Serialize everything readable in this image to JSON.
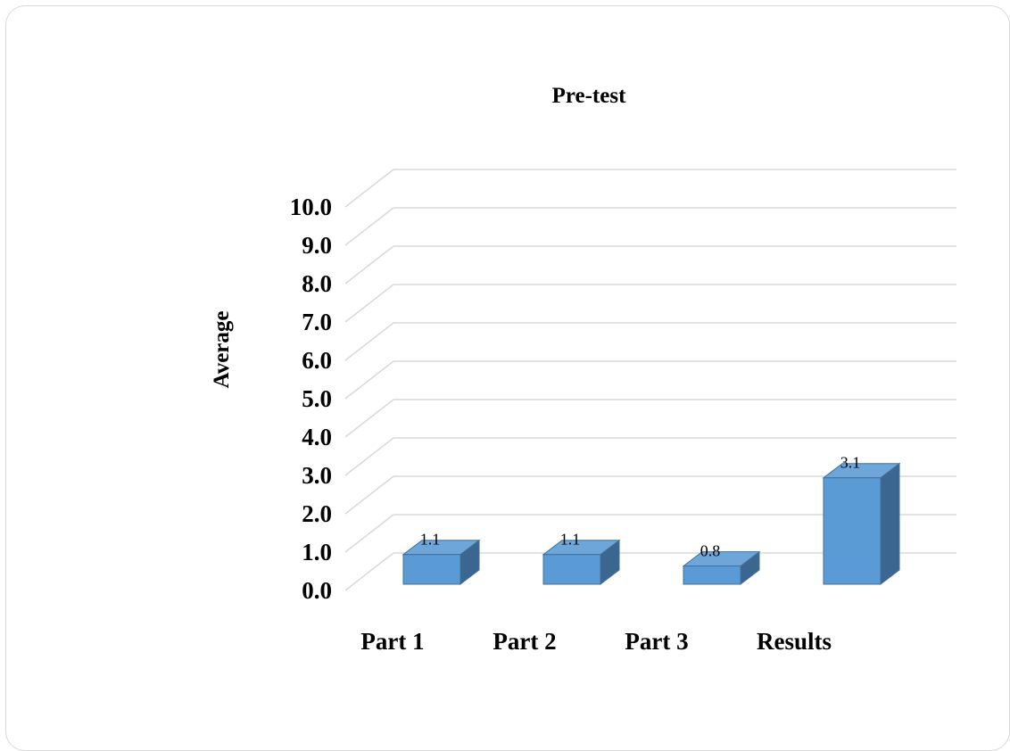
{
  "chart_data": {
    "type": "bar",
    "title": "Pre-test",
    "ylabel": "Average",
    "xlabel": "",
    "categories": [
      "Part 1",
      "Part 2",
      "Part 3",
      "Results"
    ],
    "values": [
      1.1,
      1.1,
      0.8,
      3.1
    ],
    "data_labels": [
      "1.1",
      "1.1",
      "0.8",
      "3.1"
    ],
    "ylim": [
      0,
      10
    ],
    "yticks": [
      "0.0",
      "1.0",
      "2.0",
      "3.0",
      "4.0",
      "5.0",
      "6.0",
      "7.0",
      "8.0",
      "9.0",
      "10.0"
    ],
    "grid": true,
    "legend": "none",
    "style": "3d-column",
    "colors": {
      "bar_front": "#5b9bd5",
      "bar_top": "#6ea6da",
      "bar_side": "#3a668f",
      "bar_edge": "#41719c",
      "grid": "#d9d9d9"
    }
  }
}
